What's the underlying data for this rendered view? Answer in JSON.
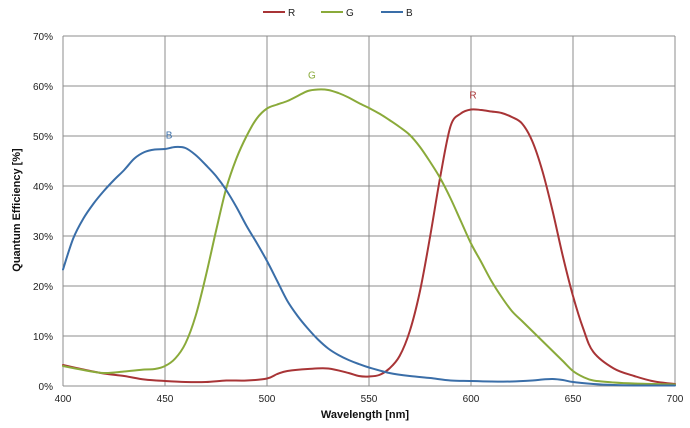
{
  "chart_data": {
    "type": "line",
    "xlabel": "Wavelength [nm]",
    "ylabel": "Quantum Efficiency [%]",
    "xlim": [
      400,
      700
    ],
    "ylim": [
      0,
      70
    ],
    "x_ticks": [
      "400",
      "450",
      "500",
      "550",
      "600",
      "650",
      "700"
    ],
    "y_ticks": [
      "0%",
      "10%",
      "20%",
      "30%",
      "40%",
      "50%",
      "60%",
      "70%"
    ],
    "grid": true,
    "legend_position": "top-center",
    "series": [
      {
        "name": "R",
        "color": "#a83436",
        "peak_label": "R",
        "peak_label_at": [
          601,
          57.5
        ],
        "points": [
          [
            400,
            4.2
          ],
          [
            410,
            3.3
          ],
          [
            420,
            2.5
          ],
          [
            430,
            2.0
          ],
          [
            440,
            1.3
          ],
          [
            450,
            1.0
          ],
          [
            460,
            0.8
          ],
          [
            470,
            0.8
          ],
          [
            480,
            1.1
          ],
          [
            490,
            1.1
          ],
          [
            500,
            1.5
          ],
          [
            505,
            2.4
          ],
          [
            510,
            3.0
          ],
          [
            520,
            3.4
          ],
          [
            530,
            3.5
          ],
          [
            540,
            2.6
          ],
          [
            545,
            2.0
          ],
          [
            550,
            1.9
          ],
          [
            555,
            2.2
          ],
          [
            560,
            3.5
          ],
          [
            565,
            6.0
          ],
          [
            570,
            11.0
          ],
          [
            575,
            19.0
          ],
          [
            580,
            30.0
          ],
          [
            585,
            42.0
          ],
          [
            590,
            52.0
          ],
          [
            595,
            54.5
          ],
          [
            600,
            55.3
          ],
          [
            605,
            55.2
          ],
          [
            610,
            54.9
          ],
          [
            615,
            54.6
          ],
          [
            620,
            53.8
          ],
          [
            625,
            52.5
          ],
          [
            630,
            49.0
          ],
          [
            635,
            43.0
          ],
          [
            640,
            35.0
          ],
          [
            645,
            26.0
          ],
          [
            650,
            18.0
          ],
          [
            655,
            11.5
          ],
          [
            660,
            6.8
          ],
          [
            670,
            3.5
          ],
          [
            680,
            2.0
          ],
          [
            690,
            0.9
          ],
          [
            700,
            0.4
          ]
        ]
      },
      {
        "name": "G",
        "color": "#8aaa3a",
        "peak_label": "G",
        "peak_label_at": [
          522,
          61.5
        ],
        "points": [
          [
            400,
            4.0
          ],
          [
            410,
            3.2
          ],
          [
            420,
            2.6
          ],
          [
            430,
            2.9
          ],
          [
            440,
            3.3
          ],
          [
            445,
            3.4
          ],
          [
            450,
            4.0
          ],
          [
            455,
            5.5
          ],
          [
            460,
            8.5
          ],
          [
            465,
            14.0
          ],
          [
            470,
            22.0
          ],
          [
            475,
            31.0
          ],
          [
            480,
            39.5
          ],
          [
            485,
            45.5
          ],
          [
            490,
            50.0
          ],
          [
            495,
            53.5
          ],
          [
            500,
            55.5
          ],
          [
            505,
            56.3
          ],
          [
            510,
            57.0
          ],
          [
            515,
            58.0
          ],
          [
            520,
            59.0
          ],
          [
            525,
            59.3
          ],
          [
            530,
            59.2
          ],
          [
            535,
            58.6
          ],
          [
            540,
            57.7
          ],
          [
            545,
            56.6
          ],
          [
            550,
            55.6
          ],
          [
            555,
            54.5
          ],
          [
            560,
            53.2
          ],
          [
            565,
            51.8
          ],
          [
            570,
            50.2
          ],
          [
            575,
            47.8
          ],
          [
            580,
            44.8
          ],
          [
            585,
            41.5
          ],
          [
            590,
            37.5
          ],
          [
            595,
            33.0
          ],
          [
            600,
            28.5
          ],
          [
            605,
            24.8
          ],
          [
            610,
            21.0
          ],
          [
            615,
            17.8
          ],
          [
            620,
            15.0
          ],
          [
            625,
            13.0
          ],
          [
            630,
            11.0
          ],
          [
            635,
            9.0
          ],
          [
            640,
            7.0
          ],
          [
            645,
            5.0
          ],
          [
            650,
            3.0
          ],
          [
            655,
            1.8
          ],
          [
            660,
            1.1
          ],
          [
            670,
            0.7
          ],
          [
            680,
            0.5
          ],
          [
            690,
            0.4
          ],
          [
            700,
            0.3
          ]
        ]
      },
      {
        "name": "B",
        "color": "#3a6ea8",
        "peak_label": "B",
        "peak_label_at": [
          452,
          49.5
        ],
        "points": [
          [
            400,
            23.3
          ],
          [
            405,
            29.5
          ],
          [
            410,
            33.5
          ],
          [
            415,
            36.5
          ],
          [
            420,
            39.0
          ],
          [
            425,
            41.2
          ],
          [
            430,
            43.2
          ],
          [
            435,
            45.5
          ],
          [
            440,
            46.8
          ],
          [
            445,
            47.3
          ],
          [
            450,
            47.4
          ],
          [
            455,
            47.8
          ],
          [
            460,
            47.6
          ],
          [
            465,
            46.2
          ],
          [
            470,
            44.2
          ],
          [
            475,
            42.0
          ],
          [
            480,
            39.2
          ],
          [
            485,
            35.8
          ],
          [
            490,
            32.0
          ],
          [
            495,
            28.6
          ],
          [
            500,
            25.0
          ],
          [
            505,
            21.0
          ],
          [
            510,
            17.0
          ],
          [
            515,
            14.0
          ],
          [
            520,
            11.5
          ],
          [
            525,
            9.3
          ],
          [
            530,
            7.5
          ],
          [
            535,
            6.2
          ],
          [
            540,
            5.2
          ],
          [
            545,
            4.4
          ],
          [
            550,
            3.7
          ],
          [
            560,
            2.6
          ],
          [
            570,
            2.0
          ],
          [
            580,
            1.6
          ],
          [
            590,
            1.1
          ],
          [
            600,
            1.0
          ],
          [
            610,
            0.9
          ],
          [
            620,
            0.9
          ],
          [
            630,
            1.1
          ],
          [
            635,
            1.3
          ],
          [
            640,
            1.4
          ],
          [
            645,
            1.2
          ],
          [
            650,
            0.8
          ],
          [
            660,
            0.4
          ],
          [
            670,
            0.2
          ],
          [
            680,
            0.1
          ],
          [
            690,
            0.1
          ],
          [
            700,
            0.1
          ]
        ]
      }
    ]
  }
}
